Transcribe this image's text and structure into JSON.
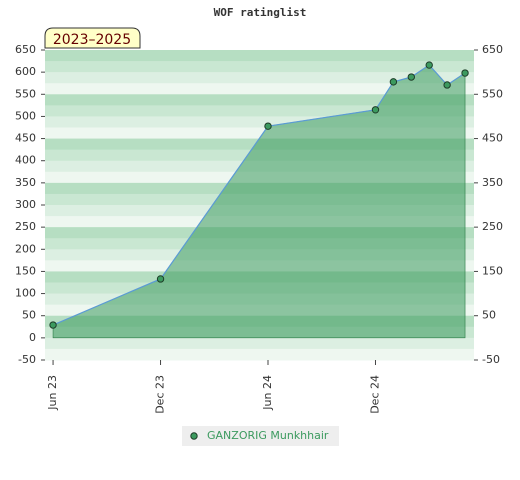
{
  "chart_data": {
    "type": "line",
    "title": "WOF ratinglist",
    "annotation": "2023–2025",
    "x": [
      "Jun 23",
      "Dec 23",
      "Jun 24",
      "Dec 24",
      "Jan 25",
      "Feb 25",
      "Mar 25",
      "Apr 25",
      "May 25"
    ],
    "xticks": [
      "Jun 23",
      "Dec 23",
      "Jun 24",
      "Dec 24"
    ],
    "series": [
      {
        "name": "GANZORIG Munkhhair",
        "color": "#3c9a5f",
        "values": [
          29,
          133,
          478,
          515,
          578,
          589,
          616,
          571,
          598
        ]
      }
    ],
    "ylim": [
      -50,
      650
    ],
    "yticks": [
      -50,
      0,
      50,
      100,
      150,
      200,
      250,
      300,
      350,
      400,
      450,
      500,
      550,
      600,
      650
    ],
    "y2lim": [
      -50,
      650
    ],
    "y2ticks": [
      -50,
      50,
      150,
      250,
      350,
      450,
      550,
      650
    ],
    "grid": true,
    "legend": "bottom"
  }
}
